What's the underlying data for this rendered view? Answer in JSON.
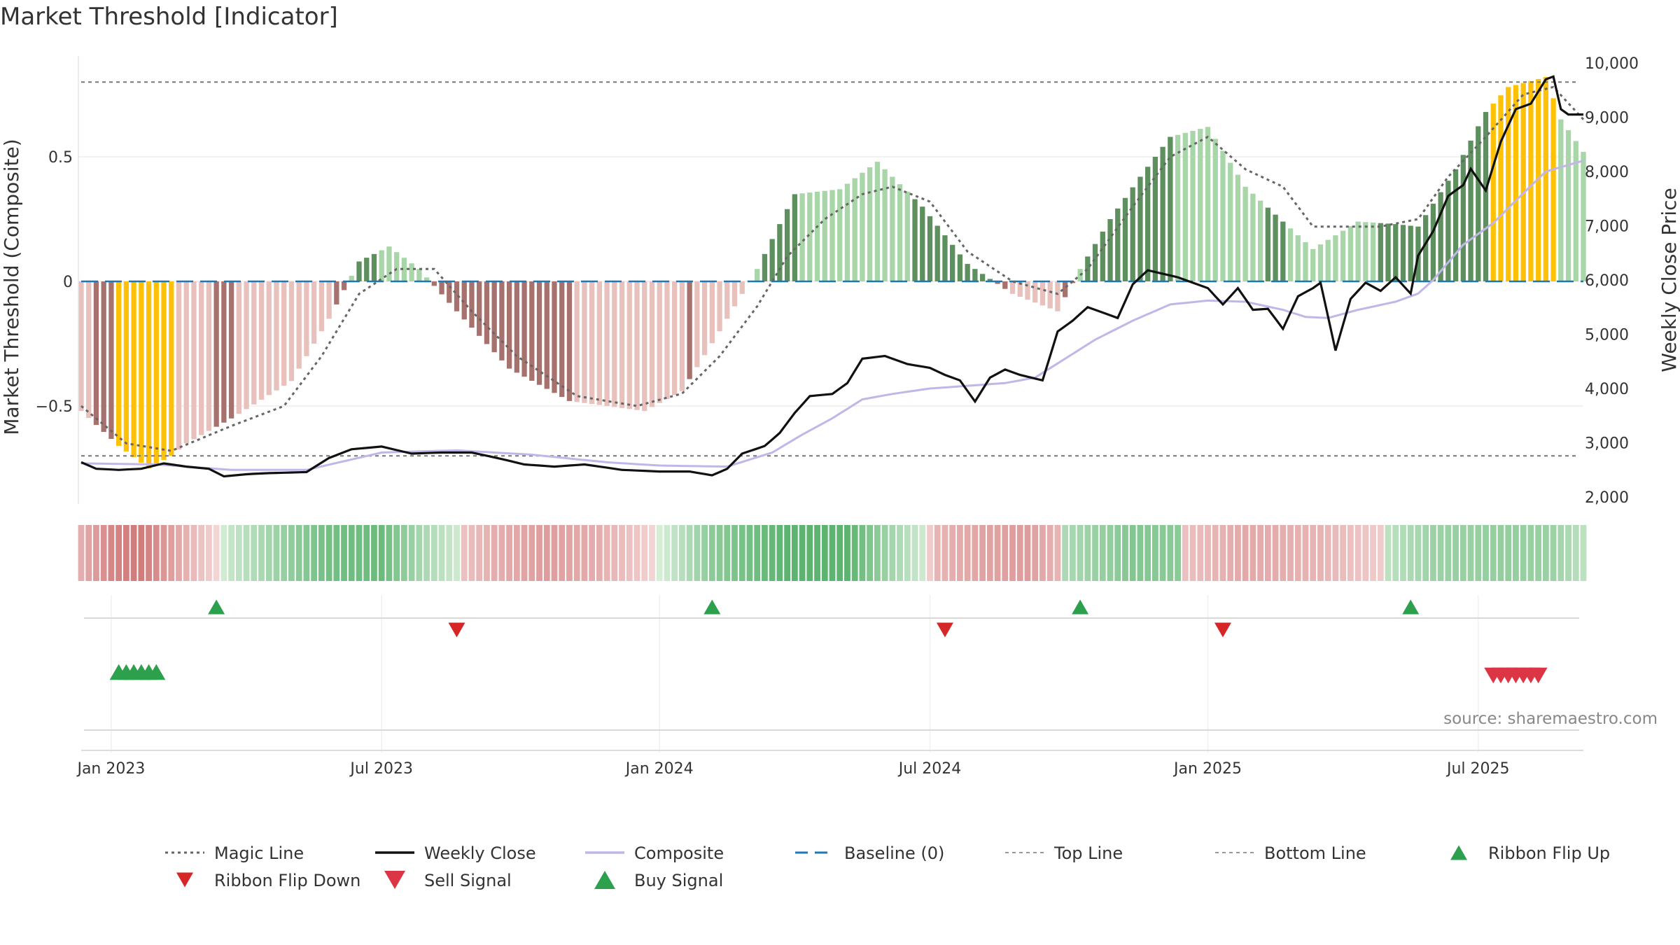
{
  "title": "Market Threshold [Indicator]",
  "source_note": "source: sharemaestro.com",
  "colors": {
    "bar_pos_dark": "#5e8f5e",
    "bar_pos_light": "#a9d6a9",
    "bar_neg_dark": "#a7726d",
    "bar_neg_light": "#e8c1bd",
    "bar_extreme": "#ffc107",
    "weekly_close": "#111111",
    "composite": "#c0b7e8",
    "magic_line": "#666666",
    "baseline": "#1f77b4",
    "buy": "#2ca04c",
    "sell": "#d62728"
  },
  "chart_data": {
    "type": "bar",
    "ylabel": "Market Threshold (Composite)",
    "y2label": "Weekly Close Price",
    "ylim": [
      -0.9,
      0.9
    ],
    "y2lim": [
      1800,
      10200
    ],
    "yticks": [
      {
        "v": 0.5,
        "label": "0.5"
      },
      {
        "v": 0,
        "label": "0"
      },
      {
        "v": -0.5,
        "label": "−0.5"
      }
    ],
    "y2ticks": [
      {
        "v": 10000,
        "label": "10,000"
      },
      {
        "v": 9000,
        "label": "9,000"
      },
      {
        "v": 8000,
        "label": "8,000"
      },
      {
        "v": 7000,
        "label": "7,000"
      },
      {
        "v": 6000,
        "label": "6,000"
      },
      {
        "v": 5000,
        "label": "5,000"
      },
      {
        "v": 4000,
        "label": "4,000"
      },
      {
        "v": 3000,
        "label": "3,000"
      },
      {
        "v": 2000,
        "label": "2,000"
      }
    ],
    "xticks": [
      {
        "i": 4,
        "label": "Jan 2023"
      },
      {
        "i": 40,
        "label": "Jul 2023"
      },
      {
        "i": 77,
        "label": "Jan 2024"
      },
      {
        "i": 113,
        "label": "Jul 2024"
      },
      {
        "i": 150,
        "label": "Jan 2025"
      },
      {
        "i": 186,
        "label": "Jul 2025"
      }
    ],
    "top_line": 0.8,
    "bottom_line": -0.7,
    "weeks": 201,
    "threshold_anchors": [
      [
        0,
        -0.52
      ],
      [
        5,
        -0.66
      ],
      [
        9,
        -0.75
      ],
      [
        12,
        -0.7
      ],
      [
        14,
        -0.65
      ],
      [
        20,
        -0.55
      ],
      [
        28,
        -0.4
      ],
      [
        33,
        -0.15
      ],
      [
        37,
        0.08
      ],
      [
        41,
        0.14
      ],
      [
        45,
        0.05
      ],
      [
        50,
        -0.12
      ],
      [
        57,
        -0.35
      ],
      [
        65,
        -0.48
      ],
      [
        75,
        -0.52
      ],
      [
        80,
        -0.44
      ],
      [
        85,
        -0.2
      ],
      [
        90,
        0.05
      ],
      [
        95,
        0.35
      ],
      [
        101,
        0.37
      ],
      [
        106,
        0.48
      ],
      [
        112,
        0.3
      ],
      [
        118,
        0.07
      ],
      [
        124,
        -0.05
      ],
      [
        130,
        -0.12
      ],
      [
        133,
        0.05
      ],
      [
        137,
        0.25
      ],
      [
        141,
        0.42
      ],
      [
        145,
        0.58
      ],
      [
        150,
        0.62
      ],
      [
        155,
        0.38
      ],
      [
        160,
        0.24
      ],
      [
        164,
        0.13
      ],
      [
        170,
        0.24
      ],
      [
        175,
        0.23
      ],
      [
        178,
        0.22
      ],
      [
        183,
        0.45
      ],
      [
        187,
        0.68
      ],
      [
        190,
        0.78
      ],
      [
        195,
        0.82
      ],
      [
        197,
        0.65
      ],
      [
        200,
        0.52
      ]
    ],
    "extreme_ranges": [
      [
        5,
        12
      ],
      [
        188,
        196
      ]
    ],
    "neg_light_ranges": [
      [
        0,
        1
      ],
      [
        13,
        17
      ],
      [
        21,
        33
      ],
      [
        66,
        80
      ],
      [
        82,
        90
      ],
      [
        124,
        130
      ]
    ],
    "pos_light_ranges": [
      [
        33,
        36
      ],
      [
        40,
        46
      ],
      [
        86,
        90
      ],
      [
        96,
        110
      ],
      [
        128,
        133
      ],
      [
        146,
        157
      ],
      [
        161,
        172
      ],
      [
        197,
        200
      ]
    ],
    "close_anchors": [
      [
        0,
        2640
      ],
      [
        2,
        2520
      ],
      [
        5,
        2500
      ],
      [
        8,
        2520
      ],
      [
        11,
        2620
      ],
      [
        14,
        2560
      ],
      [
        17,
        2520
      ],
      [
        19,
        2380
      ],
      [
        22,
        2420
      ],
      [
        25,
        2440
      ],
      [
        30,
        2460
      ],
      [
        33,
        2720
      ],
      [
        36,
        2880
      ],
      [
        40,
        2930
      ],
      [
        44,
        2800
      ],
      [
        48,
        2820
      ],
      [
        52,
        2820
      ],
      [
        56,
        2700
      ],
      [
        59,
        2600
      ],
      [
        63,
        2560
      ],
      [
        67,
        2600
      ],
      [
        72,
        2500
      ],
      [
        77,
        2470
      ],
      [
        81,
        2470
      ],
      [
        84,
        2400
      ],
      [
        86,
        2520
      ],
      [
        88,
        2800
      ],
      [
        91,
        2940
      ],
      [
        93,
        3180
      ],
      [
        95,
        3550
      ],
      [
        97,
        3860
      ],
      [
        100,
        3900
      ],
      [
        102,
        4100
      ],
      [
        104,
        4550
      ],
      [
        107,
        4600
      ],
      [
        110,
        4450
      ],
      [
        113,
        4380
      ],
      [
        115,
        4250
      ],
      [
        117,
        4150
      ],
      [
        119,
        3760
      ],
      [
        121,
        4200
      ],
      [
        123,
        4350
      ],
      [
        125,
        4250
      ],
      [
        128,
        4150
      ],
      [
        130,
        5050
      ],
      [
        132,
        5250
      ],
      [
        134,
        5500
      ],
      [
        136,
        5400
      ],
      [
        138,
        5300
      ],
      [
        140,
        5920
      ],
      [
        142,
        6180
      ],
      [
        146,
        6050
      ],
      [
        150,
        5850
      ],
      [
        152,
        5550
      ],
      [
        154,
        5850
      ],
      [
        156,
        5450
      ],
      [
        158,
        5470
      ],
      [
        160,
        5100
      ],
      [
        162,
        5700
      ],
      [
        164,
        5850
      ],
      [
        165,
        5950
      ],
      [
        167,
        4700
      ],
      [
        169,
        5650
      ],
      [
        171,
        5950
      ],
      [
        173,
        5800
      ],
      [
        175,
        6050
      ],
      [
        177,
        5750
      ],
      [
        178,
        6450
      ],
      [
        180,
        6900
      ],
      [
        182,
        7550
      ],
      [
        184,
        7750
      ],
      [
        185,
        8050
      ],
      [
        187,
        7650
      ],
      [
        189,
        8550
      ],
      [
        191,
        9150
      ],
      [
        193,
        9250
      ],
      [
        195,
        9700
      ],
      [
        196,
        9750
      ],
      [
        197,
        9150
      ],
      [
        198,
        9050
      ],
      [
        200,
        9050
      ]
    ],
    "composite_anchors": [
      [
        0,
        2620
      ],
      [
        10,
        2600
      ],
      [
        20,
        2500
      ],
      [
        30,
        2500
      ],
      [
        40,
        2820
      ],
      [
        50,
        2860
      ],
      [
        60,
        2780
      ],
      [
        70,
        2640
      ],
      [
        77,
        2580
      ],
      [
        86,
        2560
      ],
      [
        92,
        2820
      ],
      [
        96,
        3150
      ],
      [
        100,
        3450
      ],
      [
        104,
        3800
      ],
      [
        108,
        3900
      ],
      [
        113,
        4000
      ],
      [
        118,
        4050
      ],
      [
        123,
        4100
      ],
      [
        127,
        4200
      ],
      [
        131,
        4550
      ],
      [
        135,
        4900
      ],
      [
        140,
        5250
      ],
      [
        145,
        5550
      ],
      [
        150,
        5620
      ],
      [
        155,
        5600
      ],
      [
        160,
        5450
      ],
      [
        163,
        5320
      ],
      [
        166,
        5300
      ],
      [
        170,
        5450
      ],
      [
        175,
        5600
      ],
      [
        178,
        5750
      ],
      [
        180,
        6000
      ],
      [
        184,
        6650
      ],
      [
        188,
        7050
      ],
      [
        192,
        7600
      ],
      [
        195,
        8000
      ],
      [
        200,
        8200
      ]
    ],
    "magic_anchors": [
      [
        0,
        -0.5
      ],
      [
        6,
        -0.65
      ],
      [
        12,
        -0.68
      ],
      [
        20,
        -0.58
      ],
      [
        27,
        -0.5
      ],
      [
        32,
        -0.3
      ],
      [
        37,
        -0.05
      ],
      [
        42,
        0.05
      ],
      [
        47,
        0.05
      ],
      [
        52,
        -0.12
      ],
      [
        58,
        -0.3
      ],
      [
        66,
        -0.46
      ],
      [
        74,
        -0.5
      ],
      [
        80,
        -0.45
      ],
      [
        85,
        -0.3
      ],
      [
        90,
        -0.1
      ],
      [
        94,
        0.1
      ],
      [
        99,
        0.25
      ],
      [
        104,
        0.35
      ],
      [
        108,
        0.38
      ],
      [
        113,
        0.32
      ],
      [
        118,
        0.12
      ],
      [
        124,
        0.0
      ],
      [
        130,
        -0.05
      ],
      [
        134,
        0.05
      ],
      [
        140,
        0.3
      ],
      [
        145,
        0.5
      ],
      [
        150,
        0.58
      ],
      [
        155,
        0.45
      ],
      [
        160,
        0.38
      ],
      [
        164,
        0.22
      ],
      [
        168,
        0.22
      ],
      [
        173,
        0.22
      ],
      [
        178,
        0.25
      ],
      [
        182,
        0.42
      ],
      [
        187,
        0.58
      ],
      [
        192,
        0.75
      ],
      [
        196,
        0.78
      ],
      [
        200,
        0.65
      ]
    ],
    "ribbon_anchors": [
      [
        0,
        -0.35
      ],
      [
        4,
        -0.7
      ],
      [
        8,
        -0.8
      ],
      [
        13,
        -0.4
      ],
      [
        17,
        -0.1
      ],
      [
        20,
        0.15
      ],
      [
        26,
        0.4
      ],
      [
        33,
        0.65
      ],
      [
        40,
        0.7
      ],
      [
        45,
        0.35
      ],
      [
        50,
        0.1
      ],
      [
        51,
        -0.2
      ],
      [
        55,
        -0.35
      ],
      [
        62,
        -0.5
      ],
      [
        69,
        -0.35
      ],
      [
        74,
        -0.15
      ],
      [
        78,
        0.1
      ],
      [
        84,
        0.5
      ],
      [
        94,
        0.8
      ],
      [
        102,
        0.8
      ],
      [
        108,
        0.35
      ],
      [
        112,
        0.1
      ],
      [
        114,
        -0.3
      ],
      [
        120,
        -0.45
      ],
      [
        126,
        -0.5
      ],
      [
        130,
        -0.3
      ],
      [
        131,
        0.3
      ],
      [
        140,
        0.55
      ],
      [
        146,
        0.5
      ],
      [
        147,
        -0.2
      ],
      [
        155,
        -0.4
      ],
      [
        165,
        -0.3
      ],
      [
        173,
        -0.1
      ],
      [
        174,
        0.2
      ],
      [
        180,
        0.4
      ],
      [
        190,
        0.45
      ],
      [
        196,
        0.4
      ],
      [
        200,
        0.2
      ]
    ],
    "ribbon_flip_up": [
      18,
      84,
      133,
      177
    ],
    "ribbon_flip_down": [
      50,
      115,
      152
    ],
    "buy_signals": [
      5,
      6,
      7,
      8,
      9,
      10
    ],
    "sell_signals": [
      188,
      189,
      190,
      191,
      192,
      193,
      194
    ],
    "legend": [
      {
        "label": "Magic Line",
        "kind": "dotted"
      },
      {
        "label": "Weekly Close",
        "kind": "solid"
      },
      {
        "label": "Composite",
        "kind": "composite"
      },
      {
        "label": "Baseline (0)",
        "kind": "dashed"
      },
      {
        "label": "Top Line",
        "kind": "thin-dashed"
      },
      {
        "label": "Bottom Line",
        "kind": "thin-dashed"
      },
      {
        "label": "Ribbon Flip Up",
        "kind": "tri-up-small"
      },
      {
        "label": "Ribbon Flip Down",
        "kind": "tri-down-small"
      },
      {
        "label": "Sell Signal",
        "kind": "tri-down-big"
      },
      {
        "label": "Buy Signal",
        "kind": "tri-up-big"
      }
    ]
  }
}
